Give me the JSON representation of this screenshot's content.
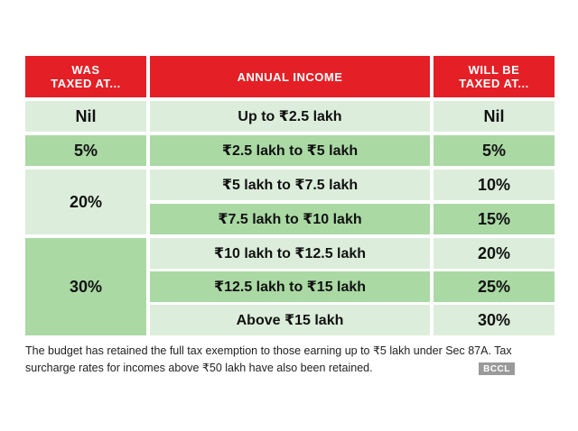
{
  "headers": {
    "was_taxed": "WAS\nTAXED AT...",
    "annual_income": "ANNUAL INCOME",
    "will_be_taxed": "WILL BE\nTAXED AT..."
  },
  "was_taxed_values": [
    "Nil",
    "5%",
    "20%",
    "30%"
  ],
  "rows": [
    {
      "income": "Up to ₹2.5 lakh",
      "will": "Nil"
    },
    {
      "income": "₹2.5 lakh to ₹5 lakh",
      "will": "5%"
    },
    {
      "income": "₹5 lakh to ₹7.5 lakh",
      "will": "10%"
    },
    {
      "income": "₹7.5 lakh to ₹10 lakh",
      "will": "15%"
    },
    {
      "income": "₹10 lakh to ₹12.5 lakh",
      "will": "20%"
    },
    {
      "income": "₹12.5 lakh to ₹15 lakh",
      "will": "25%"
    },
    {
      "income": "Above ₹15 lakh",
      "will": "30%"
    }
  ],
  "footnote": "The budget has retained the full tax exemption to those earning up to ₹5 lakh under Sec 87A. Tax surcharge rates for incomes above ₹50 lakh have also been retained.",
  "watermark": "BCCL",
  "colors": {
    "header": "#e41f26",
    "light_green": "#dceedb",
    "dark_green": "#aad9a4"
  }
}
